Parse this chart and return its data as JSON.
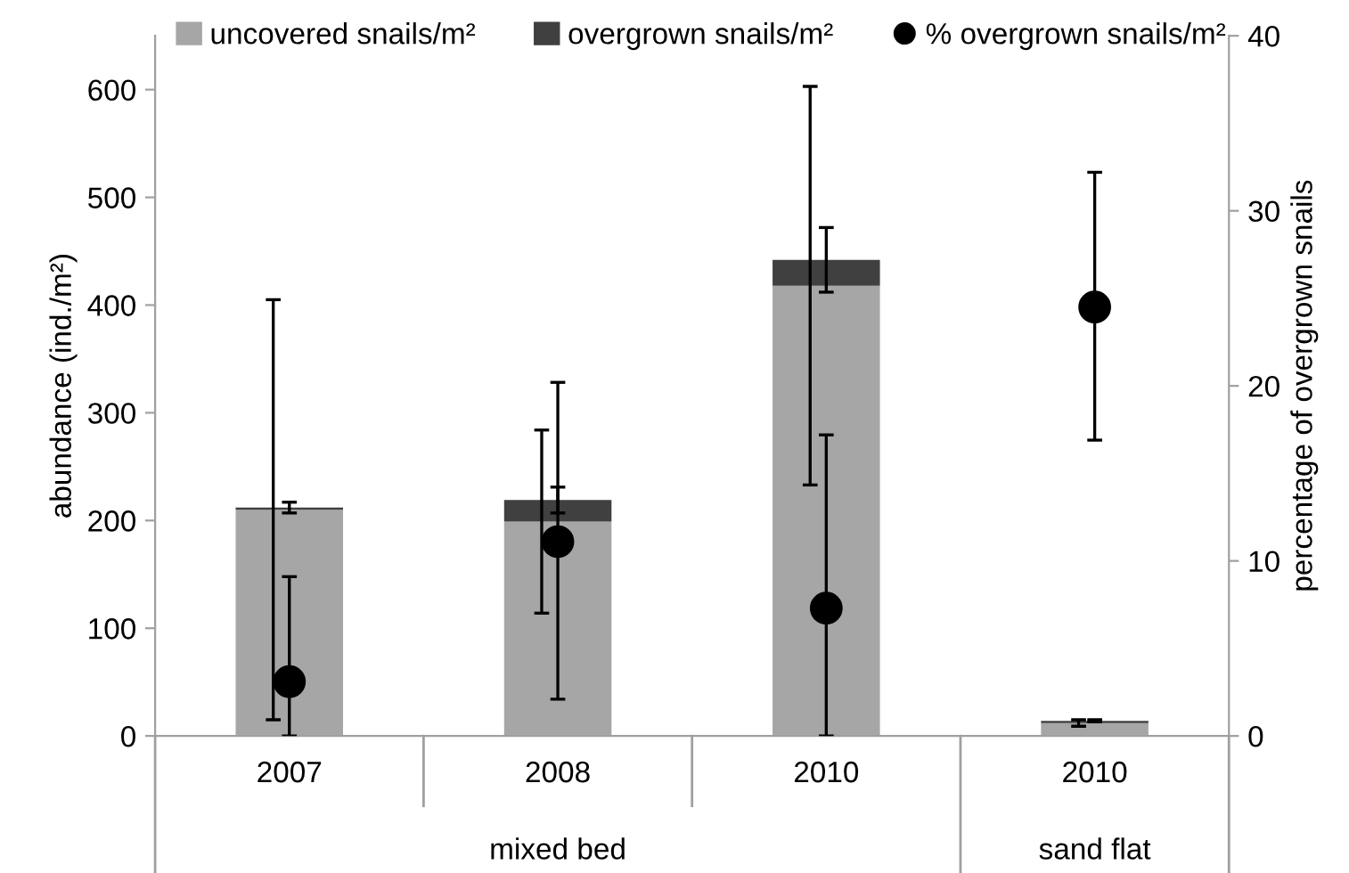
{
  "chart_data": {
    "type": "bar",
    "stacked": true,
    "categories": [
      "2007",
      "2008",
      "2010",
      "2010"
    ],
    "series": [
      {
        "name": "uncovered snails/m²",
        "color": "#a6a6a6",
        "values": [
          210,
          199,
          418,
          12
        ],
        "errors": [
          195,
          85,
          185,
          3
        ]
      },
      {
        "name": "overgrown snails/m²",
        "color": "#404040",
        "values": [
          2,
          20,
          24,
          2
        ],
        "errors": [
          5,
          12,
          30,
          1
        ]
      },
      {
        "name": "% overgrown snails/m²",
        "type": "scatter",
        "axis": "y2",
        "marker": "circle",
        "color": "#000000",
        "values": [
          3.1,
          11.1,
          7.3,
          24.5
        ],
        "errors": [
          [
            0,
            9.1
          ],
          [
            2.1,
            20.2
          ],
          [
            0,
            17.2
          ],
          [
            16.9,
            32.2
          ]
        ]
      }
    ],
    "ylabel": "abundance (ind./m²)",
    "y2label": "percentage of overgrown snails",
    "ylim": [
      0,
      650
    ],
    "yticks": [
      0,
      100,
      200,
      300,
      400,
      500,
      600
    ],
    "y2lim": [
      0,
      40
    ],
    "y2ticks": [
      0,
      10,
      20,
      30,
      40
    ],
    "annotations": [
      "mixed bed",
      "sand flat"
    ],
    "legend": "top",
    "grid": false
  }
}
